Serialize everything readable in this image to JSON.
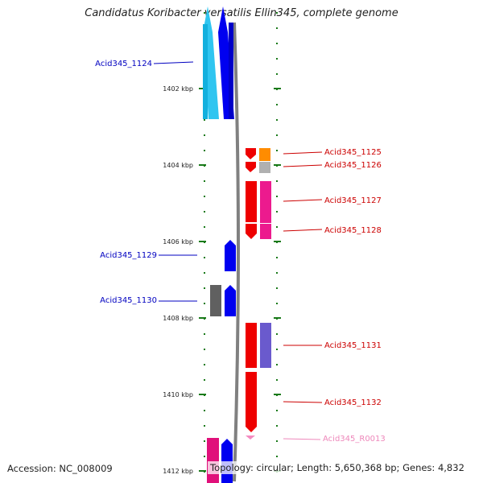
{
  "title": "Candidatus Koribacter versatilis Ellin345, complete genome",
  "footer": {
    "accession": "Accession: NC_008009",
    "topology": "Topology: circular; Length: 5,650,368 bp; Genes: 4,832"
  },
  "ticks": [
    {
      "label": "1402 kbp",
      "kbp": 1402
    },
    {
      "label": "1404 kbp",
      "kbp": 1404
    },
    {
      "label": "1406 kbp",
      "kbp": 1406
    },
    {
      "label": "1408 kbp",
      "kbp": 1408
    },
    {
      "label": "1410 kbp",
      "kbp": 1410
    },
    {
      "label": "1412 kbp",
      "kbp": 1412
    }
  ],
  "colors": {
    "backbone": "#808080",
    "left_label": "#0000c0",
    "right_label": "#cc0000",
    "rna_label": "#ee88bb",
    "tick": "#1a7a1a"
  },
  "genes": [
    {
      "name": "Acid345_1124",
      "side": "left",
      "color": "#0000c0"
    },
    {
      "name": "Acid345_1125",
      "side": "right",
      "color": "#cc0000"
    },
    {
      "name": "Acid345_1126",
      "side": "right",
      "color": "#cc0000"
    },
    {
      "name": "Acid345_1127",
      "side": "right",
      "color": "#cc0000"
    },
    {
      "name": "Acid345_1128",
      "side": "right",
      "color": "#cc0000"
    },
    {
      "name": "Acid345_1129",
      "side": "left",
      "color": "#0000c0"
    },
    {
      "name": "Acid345_1130",
      "side": "left",
      "color": "#0000c0"
    },
    {
      "name": "Acid345_1131",
      "side": "right",
      "color": "#cc0000"
    },
    {
      "name": "Acid345_1132",
      "side": "right",
      "color": "#cc0000"
    },
    {
      "name": "Acid345_R0013",
      "side": "right",
      "color": "#ee88bb"
    }
  ]
}
